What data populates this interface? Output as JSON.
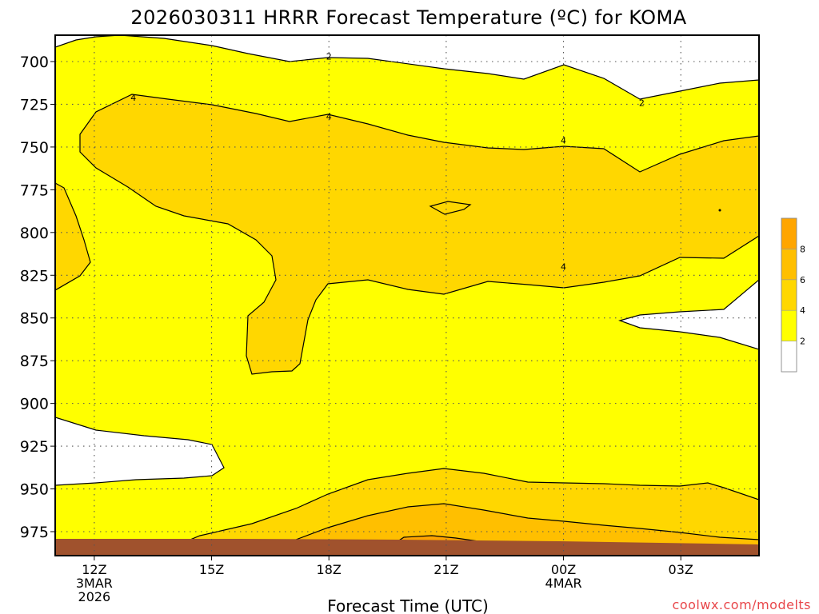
{
  "chart_data": {
    "type": "contour",
    "title": "2026030311 HRRR Forecast Temperature (ºC) for KOMA",
    "xlabel": "Forecast Time (UTC)",
    "ylabel": "",
    "credit": "coolwx.com/modelts",
    "x_ticks": [
      {
        "hour": 12,
        "lines": [
          "12Z",
          "3MAR",
          "2026"
        ]
      },
      {
        "hour": 15,
        "lines": [
          "15Z"
        ]
      },
      {
        "hour": 18,
        "lines": [
          "18Z"
        ]
      },
      {
        "hour": 21,
        "lines": [
          "21Z"
        ]
      },
      {
        "hour": 24,
        "lines": [
          "00Z",
          "4MAR"
        ]
      },
      {
        "hour": 27,
        "lines": [
          "03Z"
        ]
      }
    ],
    "xlim": [
      11,
      29
    ],
    "y_ticks": [
      700,
      725,
      750,
      775,
      800,
      825,
      850,
      875,
      900,
      925,
      950,
      975
    ],
    "ylim_hpa": [
      688,
      989
    ],
    "contour_levels": [
      2,
      4,
      6,
      8
    ],
    "contour_labels": [
      {
        "text": "2",
        "hour": 18.0,
        "p": 697
      },
      {
        "text": "2",
        "hour": 26.0,
        "p": 724
      },
      {
        "text": "4",
        "hour": 13.0,
        "p": 721
      },
      {
        "text": "4",
        "hour": 18.0,
        "p": 732
      },
      {
        "text": "4",
        "hour": 24.0,
        "p": 746
      },
      {
        "text": "4",
        "hour": 24.0,
        "p": 820
      }
    ],
    "colorbar": {
      "ticks": [
        "2",
        "4",
        "6",
        "8"
      ],
      "colors": [
        "#ffffff",
        "#ffff00",
        "#ffd700",
        "#ffbf00",
        "#ffa500"
      ]
    },
    "fill_colors": {
      "below_2": "#ffffff",
      "2_to_4": "#ffff00",
      "4_to_6": "#ffd700",
      "6_to_8": "#ffbf00",
      "ground": "#a0522d"
    }
  }
}
